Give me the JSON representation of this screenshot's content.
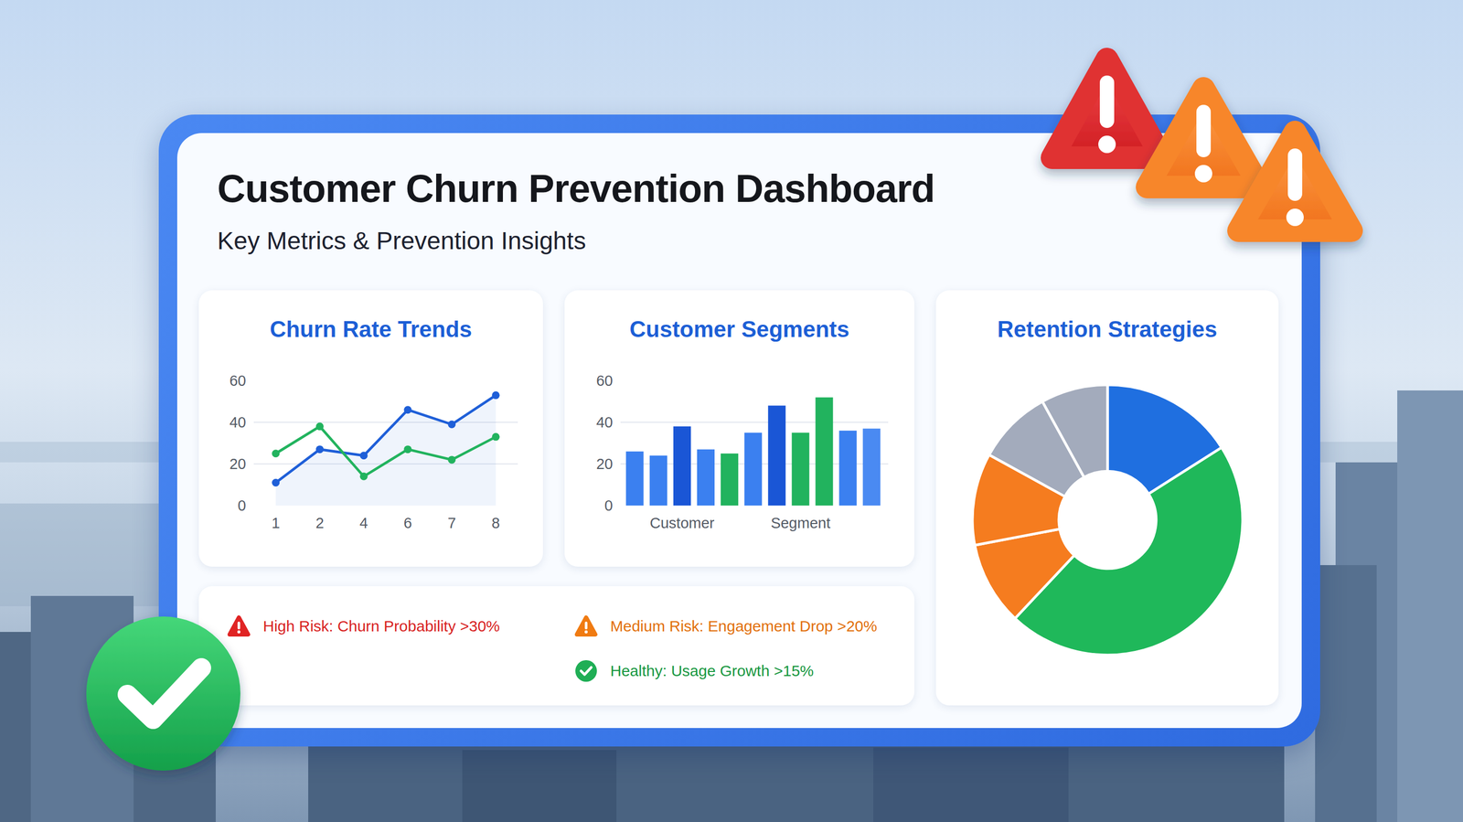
{
  "header": {
    "title": "Customer Churn Prevention Dashboard",
    "subtitle": "Key Metrics & Prevention Insights"
  },
  "chart_data": [
    {
      "type": "line",
      "title": "Churn Rate Trends",
      "categories": [
        "1",
        "2",
        "4",
        "6",
        "7",
        "8"
      ],
      "series": [
        {
          "color": "#1f5fd8",
          "values": [
            11,
            27,
            24,
            46,
            39,
            53
          ]
        },
        {
          "color": "#22b35e",
          "values": [
            25,
            38,
            14,
            27,
            22,
            33
          ]
        }
      ],
      "ylim": [
        0,
        60
      ],
      "yticks": [
        0,
        20,
        40,
        60
      ],
      "grid": true,
      "marker": "circle"
    },
    {
      "type": "bar",
      "title": "Customer Segments",
      "categories": [
        null,
        null,
        "Customer",
        null,
        null,
        null,
        null,
        "Segment",
        null,
        null,
        null
      ],
      "values": [
        26,
        24,
        38,
        27,
        25,
        35,
        48,
        35,
        52,
        36,
        37
      ],
      "colors": [
        "#3b80f0",
        "#3b80f0",
        "#1a56d6",
        "#3b80f0",
        "#22b35e",
        "#3b80f0",
        "#1a56d6",
        "#22b35e",
        "#22b35e",
        "#3b80f0",
        "#4a8af2"
      ],
      "ylim": [
        0,
        60
      ],
      "yticks": [
        0,
        20,
        40,
        60
      ],
      "grid": true
    },
    {
      "type": "donut",
      "title": "Retention Strategies",
      "values": [
        16,
        46,
        10,
        11,
        9,
        8
      ],
      "colors": [
        "#1f6fe0",
        "#1fb85a",
        "#f57c1f",
        "#f57c1f",
        "#a3abbc",
        "#a3abbc"
      ]
    }
  ],
  "alerts": [
    "High Risk: Churn Probability >30%",
    "Medium Risk: Engagement Drop >20%",
    "Healthy: Usage Growth >15%"
  ]
}
